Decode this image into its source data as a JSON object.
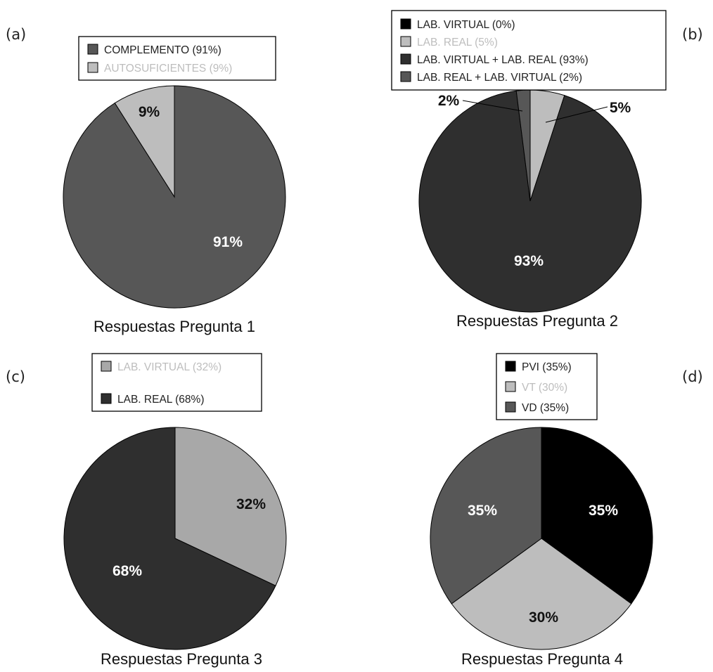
{
  "chart_data": [
    {
      "type": "pie",
      "panel": "(a)",
      "title": "Respuestas Pregunta 1",
      "series": [
        {
          "name": "COMPLEMENTO (91%)",
          "value": 91,
          "label": "91%",
          "color": "#575757",
          "legend_text_color": "#222222",
          "label_color": "#ffffff"
        },
        {
          "name": "AUTOSUFICIENTES (9%)",
          "value": 9,
          "label": "9%",
          "color": "#bdbdbd",
          "legend_text_color": "#bdbdbd",
          "label_color": "#111111"
        }
      ]
    },
    {
      "type": "pie",
      "panel": "(b)",
      "title": "Respuestas Pregunta 2",
      "series": [
        {
          "name": "LAB. VIRTUAL (0%)",
          "value": 0,
          "label": "",
          "color": "#000000",
          "legend_text_color": "#222222",
          "label_color": "#111111"
        },
        {
          "name": "LAB. REAL (5%)",
          "value": 5,
          "label": "5%",
          "color": "#bdbdbd",
          "legend_text_color": "#bdbdbd",
          "label_color": "#111111"
        },
        {
          "name": "LAB. VIRTUAL + LAB. REAL (93%)",
          "value": 93,
          "label": "93%",
          "color": "#2f2f2f",
          "legend_text_color": "#222222",
          "label_color": "#ffffff"
        },
        {
          "name": "LAB. REAL + LAB. VIRTUAL (2%)",
          "value": 2,
          "label": "2%",
          "color": "#575757",
          "legend_text_color": "#222222",
          "label_color": "#111111"
        }
      ]
    },
    {
      "type": "pie",
      "panel": "(c)",
      "title": "Respuestas Pregunta 3",
      "series": [
        {
          "name": "LAB. VIRTUAL (32%)",
          "value": 32,
          "label": "32%",
          "color": "#a8a8a8",
          "legend_text_color": "#bdbdbd",
          "label_color": "#111111"
        },
        {
          "name": "LAB. REAL (68%)",
          "value": 68,
          "label": "68%",
          "color": "#2f2f2f",
          "legend_text_color": "#222222",
          "label_color": "#ffffff"
        }
      ]
    },
    {
      "type": "pie",
      "panel": "(d)",
      "title": "Respuestas Pregunta 4",
      "series": [
        {
          "name": "PVI (35%)",
          "value": 35,
          "label": "35%",
          "color": "#000000",
          "legend_text_color": "#222222",
          "label_color": "#ffffff"
        },
        {
          "name": "VT (30%)",
          "value": 30,
          "label": "30%",
          "color": "#bdbdbd",
          "legend_text_color": "#bdbdbd",
          "label_color": "#111111"
        },
        {
          "name": "VD (35%)",
          "value": 35,
          "label": "35%",
          "color": "#575757",
          "legend_text_color": "#222222",
          "label_color": "#ffffff"
        }
      ]
    }
  ]
}
